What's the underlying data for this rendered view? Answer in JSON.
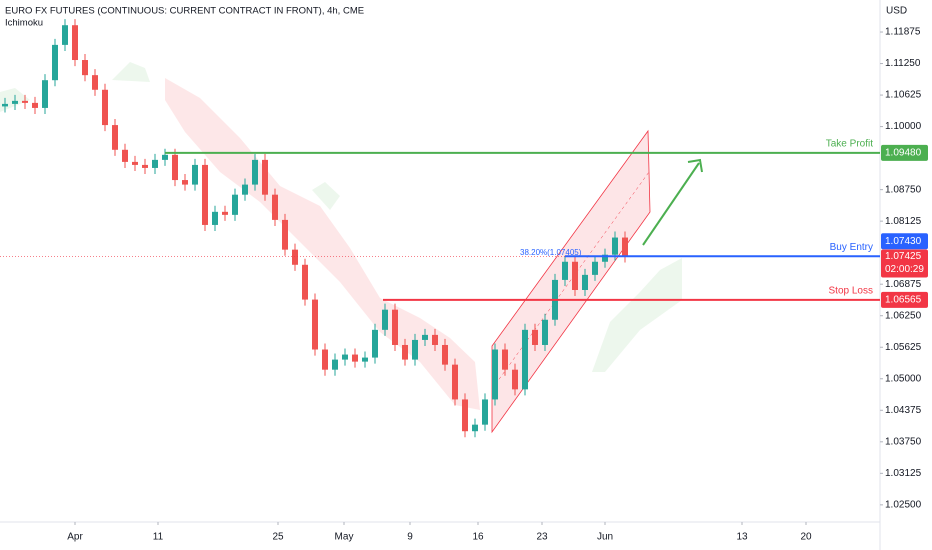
{
  "chart_data": {
    "type": "candlestick",
    "title": "EURO FX FUTURES (CONTINUOUS: CURRENT CONTRACT IN FRONT), 4h, CME",
    "indicator": "Ichimoku",
    "currency": "USD",
    "x": [
      0,
      1,
      2,
      3,
      4,
      5,
      6,
      7,
      8,
      9,
      10,
      11,
      12,
      13,
      14,
      15,
      16,
      17,
      18,
      19,
      20,
      21,
      22,
      23,
      24,
      25,
      26,
      27,
      28,
      29,
      30,
      31,
      32,
      33,
      34,
      35,
      36,
      37,
      38,
      39,
      40,
      41,
      42,
      43,
      44,
      45,
      46,
      47,
      48,
      49,
      50,
      51,
      52,
      53,
      54,
      55,
      56,
      57,
      58,
      59,
      60,
      61,
      62
    ],
    "open": [
      1.104,
      1.1045,
      1.1051,
      1.1047,
      1.1037,
      1.1092,
      1.1162,
      1.1201,
      1.1132,
      1.1102,
      1.1073,
      1.1003,
      1.0954,
      1.093,
      1.0924,
      1.0918,
      1.0934,
      1.0944,
      1.0894,
      1.0885,
      1.0924,
      1.0805,
      1.0831,
      1.0825,
      1.0865,
      1.0885,
      1.0934,
      1.0865,
      1.0815,
      1.0756,
      1.0726,
      1.0657,
      1.0558,
      1.0518,
      1.0538,
      1.0548,
      1.0534,
      1.0542,
      1.0597,
      1.0637,
      1.0567,
      1.0538,
      1.0577,
      1.0587,
      1.0567,
      1.0528,
      1.0459,
      1.0396,
      1.0409,
      1.0459,
      1.0558,
      1.0518,
      1.0479,
      1.0597,
      1.0567,
      1.0617,
      1.0696,
      1.0732,
      1.0676,
      1.0706,
      1.0732,
      1.0746,
      1.078
    ],
    "high": [
      1.1057,
      1.1063,
      1.1063,
      1.1059,
      1.1104,
      1.1174,
      1.1213,
      1.1213,
      1.1144,
      1.1114,
      1.1085,
      1.1015,
      1.0966,
      1.0942,
      1.0936,
      1.0946,
      1.0956,
      1.0956,
      1.0906,
      1.0936,
      1.0936,
      1.0843,
      1.0843,
      1.0877,
      1.0897,
      1.0946,
      1.0946,
      1.0877,
      1.0827,
      1.0768,
      1.0738,
      1.0669,
      1.057,
      1.055,
      1.056,
      1.056,
      1.0554,
      1.0609,
      1.0649,
      1.0649,
      1.0579,
      1.0589,
      1.0599,
      1.0599,
      1.0579,
      1.054,
      1.0471,
      1.0421,
      1.0471,
      1.057,
      1.057,
      1.053,
      1.0609,
      1.0609,
      1.0629,
      1.0708,
      1.0744,
      1.0744,
      1.0718,
      1.0744,
      1.0758,
      1.0792,
      1.0792
    ],
    "low": [
      1.1028,
      1.1033,
      1.1035,
      1.1025,
      1.1025,
      1.108,
      1.115,
      1.112,
      1.109,
      1.1061,
      1.0991,
      1.0942,
      1.0918,
      1.0912,
      1.0906,
      1.0906,
      1.0922,
      1.0882,
      1.0873,
      1.0873,
      1.0793,
      1.0793,
      1.0813,
      1.0813,
      1.0853,
      1.0873,
      1.0853,
      1.0803,
      1.0744,
      1.0714,
      1.0645,
      1.0546,
      1.0506,
      1.0506,
      1.0526,
      1.0522,
      1.0522,
      1.053,
      1.0585,
      1.0555,
      1.0526,
      1.0526,
      1.0565,
      1.0555,
      1.0516,
      1.0447,
      1.0384,
      1.0384,
      1.0397,
      1.0447,
      1.0506,
      1.0467,
      1.0467,
      1.0555,
      1.0555,
      1.0605,
      1.0684,
      1.0664,
      1.0664,
      1.0694,
      1.072,
      1.0734,
      1.07305
    ],
    "close": [
      1.1045,
      1.1051,
      1.1047,
      1.1037,
      1.1092,
      1.1162,
      1.1201,
      1.1132,
      1.1102,
      1.1073,
      1.1003,
      1.0954,
      1.093,
      1.0924,
      1.0918,
      1.0934,
      1.0944,
      1.0894,
      1.0885,
      1.0924,
      1.0805,
      1.0831,
      1.0825,
      1.0865,
      1.0885,
      1.0934,
      1.0865,
      1.0815,
      1.0756,
      1.0726,
      1.0657,
      1.0558,
      1.0518,
      1.0538,
      1.0548,
      1.0534,
      1.0542,
      1.0597,
      1.0637,
      1.0567,
      1.0538,
      1.0577,
      1.0587,
      1.0567,
      1.0528,
      1.0459,
      1.0396,
      1.0409,
      1.0459,
      1.0558,
      1.0518,
      1.0479,
      1.0597,
      1.0567,
      1.0617,
      1.0696,
      1.0732,
      1.0676,
      1.0706,
      1.0732,
      1.0746,
      1.078,
      1.07425
    ],
    "up_color": "#26a69a",
    "down_color": "#ef5350",
    "xlim": [
      -0.5,
      87.5
    ],
    "xticks": [
      {
        "value": 7.0,
        "label": "Apr"
      },
      {
        "value": 15.3,
        "label": "11"
      },
      {
        "value": 27.3,
        "label": "25"
      },
      {
        "value": 33.9,
        "label": "May"
      },
      {
        "value": 40.5,
        "label": "9"
      },
      {
        "value": 47.3,
        "label": "16"
      },
      {
        "value": 53.7,
        "label": "23"
      },
      {
        "value": 60.0,
        "label": "Jun"
      },
      {
        "value": 73.7,
        "label": "13"
      },
      {
        "value": 80.1,
        "label": "20"
      }
    ],
    "ylim": [
      1.0216,
      1.1251
    ],
    "yticks": [
      {
        "value": 1.025,
        "label": "1.02500"
      },
      1.03125,
      {
        "value": 1.0375,
        "label": "1.03750"
      },
      1.04375,
      {
        "value": 1.05,
        "label": "1.05000"
      },
      1.05625,
      {
        "value": 1.0625,
        "label": "1.06250"
      },
      1.06875,
      1.08125,
      {
        "value": 1.0875,
        "label": "1.08750"
      },
      {
        "value": 1.1,
        "label": "1.10000"
      },
      1.10625,
      {
        "value": 1.1125,
        "label": "1.11250"
      },
      1.11875
    ],
    "levels": [
      {
        "name": "Take Profit",
        "value": 1.0948,
        "label": "1.09480",
        "color": "#4caf50"
      },
      {
        "name": "Buy Entry",
        "value": 1.0743,
        "label": "1.07430",
        "color": "#2962ff"
      },
      {
        "name": "Stop Loss",
        "value": 1.06565,
        "label": "1.06565",
        "color": "#f23645"
      }
    ],
    "current_price": {
      "value": 1.07425,
      "label": "1.07425",
      "countdown": "02:00:29",
      "color": "#f23645"
    },
    "fib_label": "38.20%(1.07405)"
  }
}
